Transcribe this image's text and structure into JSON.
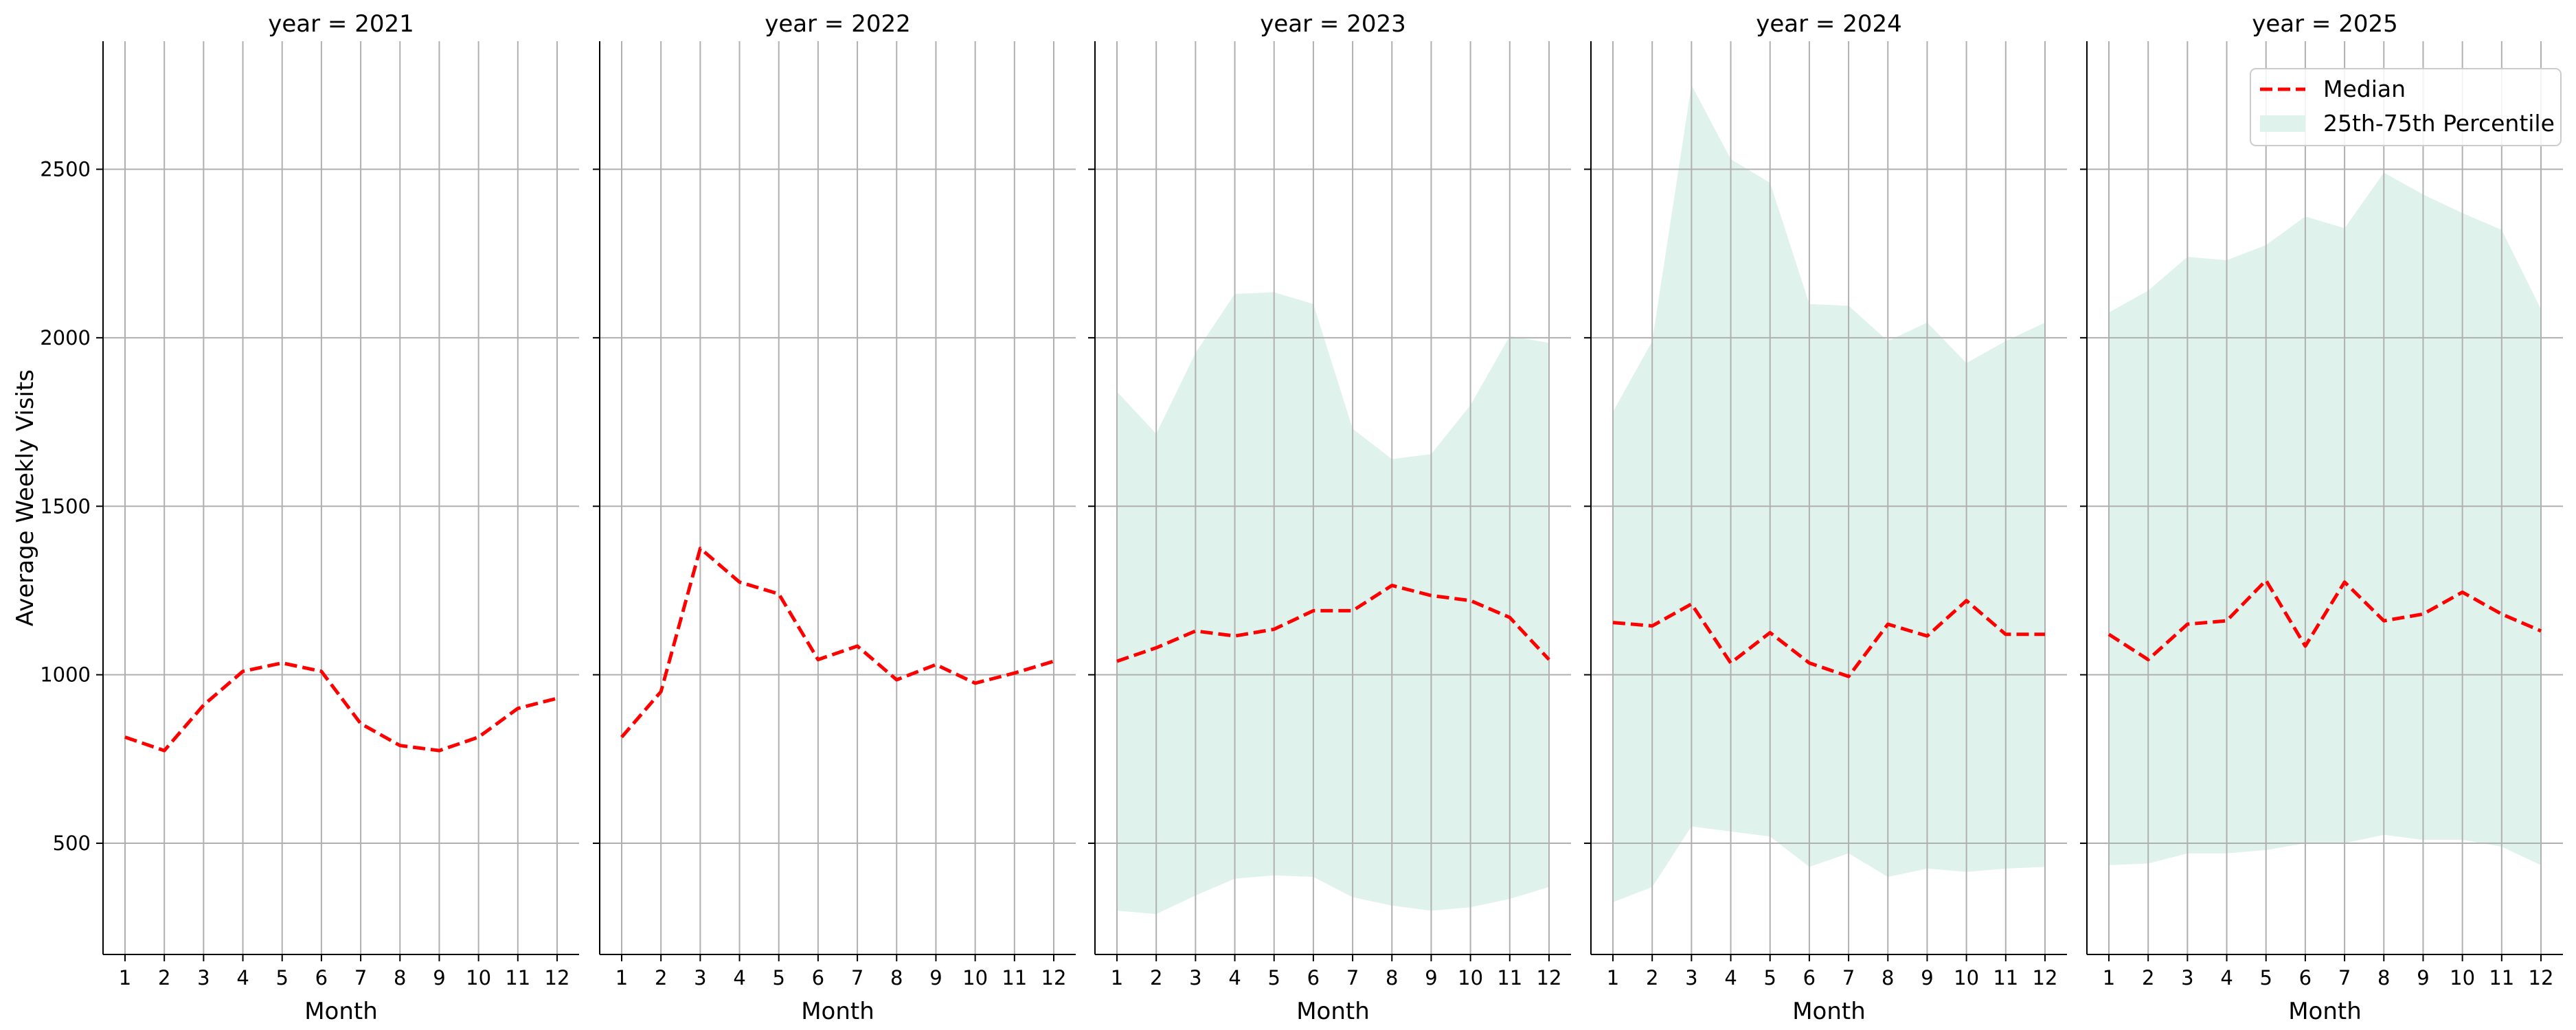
{
  "chart_data": {
    "type": "line",
    "ylabel": "Average Weekly Visits",
    "xlabel": "Month",
    "x": [
      1,
      2,
      3,
      4,
      5,
      6,
      7,
      8,
      9,
      10,
      11,
      12
    ],
    "ylim": [
      170,
      2880
    ],
    "yticks": [
      500,
      1000,
      1500,
      2000,
      2500
    ],
    "grid": true,
    "legend": {
      "placement": "top-right",
      "median_label": "Median",
      "band_label": "25th-75th Percentile"
    },
    "colors": {
      "median": "#ff0000",
      "band": "#dff2ec",
      "grid": "#b0b0b0",
      "axis": "#000000"
    },
    "panels": [
      {
        "title": "year = 2021",
        "median": [
          815,
          775,
          910,
          1010,
          1035,
          1010,
          855,
          790,
          775,
          815,
          900,
          930
        ],
        "p25": null,
        "p75": null
      },
      {
        "title": "year = 2022",
        "median": [
          815,
          950,
          1375,
          1275,
          1240,
          1045,
          1085,
          985,
          1030,
          975,
          1005,
          1040
        ],
        "p25": null,
        "p75": null
      },
      {
        "title": "year = 2023",
        "median": [
          1040,
          1080,
          1130,
          1115,
          1135,
          1190,
          1190,
          1265,
          1235,
          1220,
          1170,
          1045
        ],
        "p25": [
          300,
          290,
          345,
          395,
          405,
          400,
          340,
          315,
          300,
          310,
          335,
          370
        ],
        "p75": [
          1840,
          1715,
          1955,
          2130,
          2135,
          2100,
          1730,
          1640,
          1655,
          1800,
          2005,
          1985
        ]
      },
      {
        "title": "year = 2024",
        "median": [
          1155,
          1145,
          1210,
          1035,
          1125,
          1035,
          995,
          1150,
          1115,
          1220,
          1120,
          1120
        ],
        "p25": [
          325,
          370,
          550,
          535,
          520,
          430,
          470,
          400,
          425,
          415,
          425,
          430
        ],
        "p75": [
          1780,
          1990,
          2750,
          2530,
          2460,
          2100,
          2095,
          1990,
          2045,
          1925,
          1990,
          2045
        ]
      },
      {
        "title": "year = 2025",
        "median": [
          1120,
          1045,
          1150,
          1160,
          1280,
          1085,
          1275,
          1160,
          1180,
          1245,
          1180,
          1130
        ],
        "p25": [
          435,
          440,
          470,
          470,
          480,
          500,
          500,
          525,
          510,
          510,
          490,
          435
        ],
        "p75": [
          2075,
          2140,
          2240,
          2230,
          2275,
          2360,
          2325,
          2490,
          2425,
          2370,
          2320,
          2085
        ]
      }
    ]
  }
}
